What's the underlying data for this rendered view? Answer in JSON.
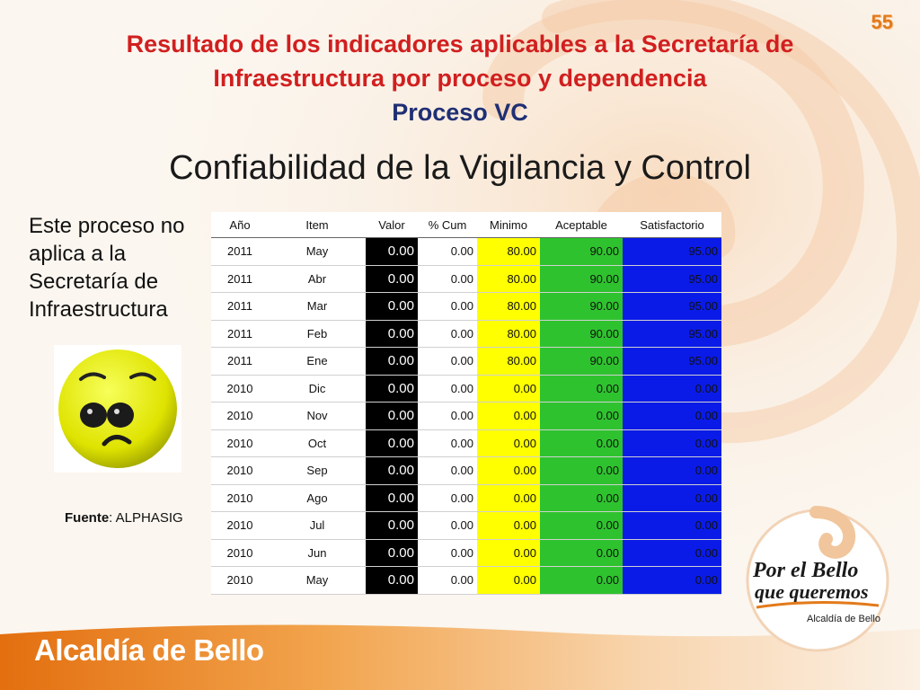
{
  "page_number": "55",
  "title_line1": "Resultado de los indicadores aplicables a la Secretaría de",
  "title_line2": "Infraestructura por proceso y dependencia",
  "subtitle": "Proceso VC",
  "heading": "Confiabilidad de la Vigilancia y Control",
  "note": "Este proceso no aplica a la Secretaría de Infraestructura",
  "source_label": "Fuente",
  "source_value": ": ALPHASIG",
  "icons": [
    "sad-face-icon"
  ],
  "colors": {
    "title": "#d11f1f",
    "subtitle": "#1f2f74",
    "valor": "#000000",
    "minimo": "#ffff00",
    "aceptable": "#2ec32e",
    "satisfactorio": "#0a1be8",
    "accent": "#e27a1b"
  },
  "table": {
    "headers": [
      "Año",
      "Item",
      "Valor",
      "% Cum",
      "Minimo",
      "Aceptable",
      "Satisfactorio"
    ],
    "rows": [
      [
        "2011",
        "May",
        "0.00",
        "0.00",
        "80.00",
        "90.00",
        "95.00"
      ],
      [
        "2011",
        "Abr",
        "0.00",
        "0.00",
        "80.00",
        "90.00",
        "95.00"
      ],
      [
        "2011",
        "Mar",
        "0.00",
        "0.00",
        "80.00",
        "90.00",
        "95.00"
      ],
      [
        "2011",
        "Feb",
        "0.00",
        "0.00",
        "80.00",
        "90.00",
        "95.00"
      ],
      [
        "2011",
        "Ene",
        "0.00",
        "0.00",
        "80.00",
        "90.00",
        "95.00"
      ],
      [
        "2010",
        "Dic",
        "0.00",
        "0.00",
        "0.00",
        "0.00",
        "0.00"
      ],
      [
        "2010",
        "Nov",
        "0.00",
        "0.00",
        "0.00",
        "0.00",
        "0.00"
      ],
      [
        "2010",
        "Oct",
        "0.00",
        "0.00",
        "0.00",
        "0.00",
        "0.00"
      ],
      [
        "2010",
        "Sep",
        "0.00",
        "0.00",
        "0.00",
        "0.00",
        "0.00"
      ],
      [
        "2010",
        "Ago",
        "0.00",
        "0.00",
        "0.00",
        "0.00",
        "0.00"
      ],
      [
        "2010",
        "Jul",
        "0.00",
        "0.00",
        "0.00",
        "0.00",
        "0.00"
      ],
      [
        "2010",
        "Jun",
        "0.00",
        "0.00",
        "0.00",
        "0.00",
        "0.00"
      ],
      [
        "2010",
        "May",
        "0.00",
        "0.00",
        "0.00",
        "0.00",
        "0.00"
      ]
    ]
  },
  "logo": {
    "line1": "Por el Bello",
    "line2": "que queremos",
    "line3": "Alcaldía de Bello"
  },
  "footer": "Alcaldía de Bello"
}
